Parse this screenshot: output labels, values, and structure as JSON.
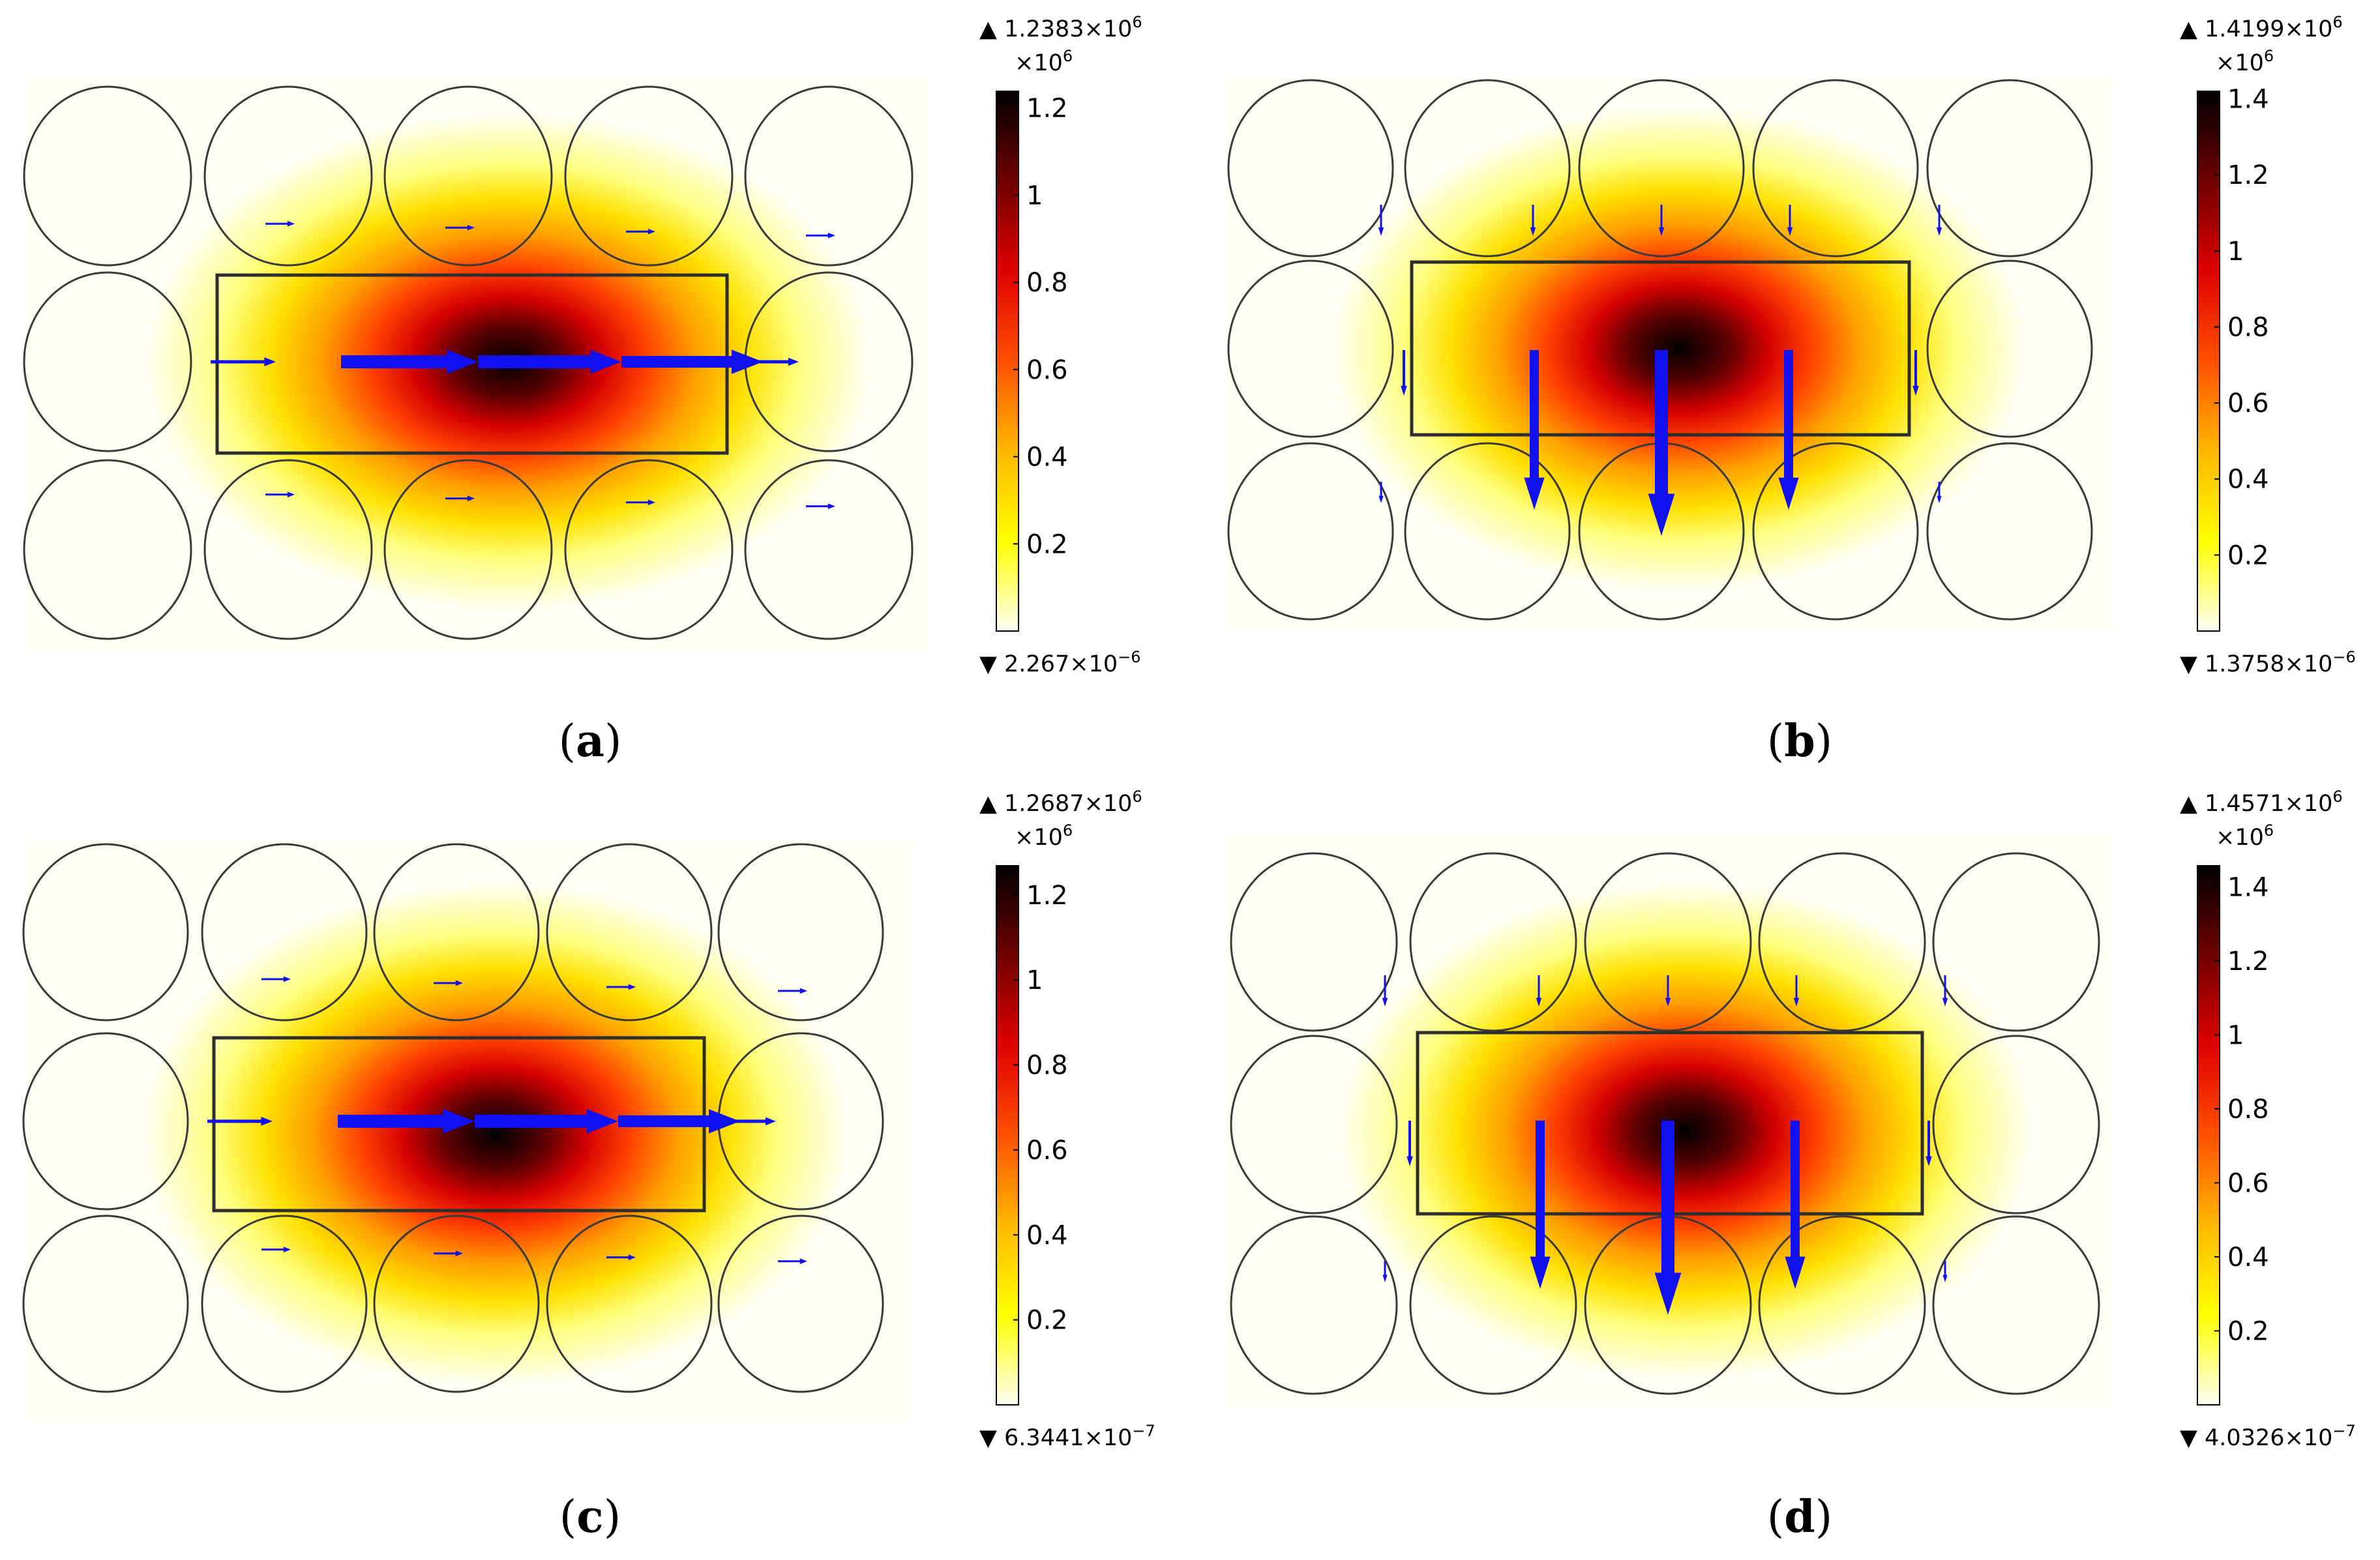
{
  "chart_data": [
    {
      "type": "heatmap",
      "panel": "a",
      "caption": {
        "open": "(",
        "letter": "a",
        "close": ")"
      },
      "colorbar": {
        "max_label": {
          "mantissa": "1.2383",
          "times": "×10",
          "exp": "6"
        },
        "min_label": {
          "mantissa": "2.267",
          "times": "×10",
          "exp": "−6"
        },
        "multiplier": {
          "times": "×10",
          "exp": "6"
        },
        "ticks": [
          {
            "value": 0.2,
            "label": "0.2"
          },
          {
            "value": 0.4,
            "label": "0.4"
          },
          {
            "value": 0.6,
            "label": "0.6"
          },
          {
            "value": 0.8,
            "label": "0.8"
          },
          {
            "value": 1.0,
            "label": "1"
          },
          {
            "value": 1.2,
            "label": "1.2"
          }
        ],
        "range": [
          0,
          1.2383
        ]
      },
      "arrow_direction": "horizontal",
      "circles_per_row": 5,
      "rows": 3
    },
    {
      "type": "heatmap",
      "panel": "b",
      "caption": {
        "open": "(",
        "letter": "b",
        "close": ")"
      },
      "colorbar": {
        "max_label": {
          "mantissa": "1.4199",
          "times": "×10",
          "exp": "6"
        },
        "min_label": {
          "mantissa": "1.3758",
          "times": "×10",
          "exp": "−6"
        },
        "multiplier": {
          "times": "×10",
          "exp": "6"
        },
        "ticks": [
          {
            "value": 0.2,
            "label": "0.2"
          },
          {
            "value": 0.4,
            "label": "0.4"
          },
          {
            "value": 0.6,
            "label": "0.6"
          },
          {
            "value": 0.8,
            "label": "0.8"
          },
          {
            "value": 1.0,
            "label": "1"
          },
          {
            "value": 1.2,
            "label": "1.2"
          },
          {
            "value": 1.4,
            "label": "1.4"
          }
        ],
        "range": [
          0,
          1.4199
        ]
      },
      "arrow_direction": "vertical",
      "circles_per_row": 5,
      "rows": 3
    },
    {
      "type": "heatmap",
      "panel": "c",
      "caption": {
        "open": "(",
        "letter": "c",
        "close": ")"
      },
      "colorbar": {
        "max_label": {
          "mantissa": "1.2687",
          "times": "×10",
          "exp": "6"
        },
        "min_label": {
          "mantissa": "6.3441",
          "times": "×10",
          "exp": "−7"
        },
        "multiplier": {
          "times": "×10",
          "exp": "6"
        },
        "ticks": [
          {
            "value": 0.2,
            "label": "0.2"
          },
          {
            "value": 0.4,
            "label": "0.4"
          },
          {
            "value": 0.6,
            "label": "0.6"
          },
          {
            "value": 0.8,
            "label": "0.8"
          },
          {
            "value": 1.0,
            "label": "1"
          },
          {
            "value": 1.2,
            "label": "1.2"
          }
        ],
        "range": [
          0,
          1.2687
        ]
      },
      "arrow_direction": "horizontal",
      "circles_per_row": 5,
      "rows": 3
    },
    {
      "type": "heatmap",
      "panel": "d",
      "caption": {
        "open": "(",
        "letter": "d",
        "close": ")"
      },
      "colorbar": {
        "max_label": {
          "mantissa": "1.4571",
          "times": "×10",
          "exp": "6"
        },
        "min_label": {
          "mantissa": "4.0326",
          "times": "×10",
          "exp": "−7"
        },
        "multiplier": {
          "times": "×10",
          "exp": "6"
        },
        "ticks": [
          {
            "value": 0.2,
            "label": "0.2"
          },
          {
            "value": 0.4,
            "label": "0.4"
          },
          {
            "value": 0.6,
            "label": "0.6"
          },
          {
            "value": 0.8,
            "label": "0.8"
          },
          {
            "value": 1.0,
            "label": "1"
          },
          {
            "value": 1.2,
            "label": "1.2"
          },
          {
            "value": 1.4,
            "label": "1.4"
          }
        ],
        "range": [
          0,
          1.4571
        ]
      },
      "arrow_direction": "vertical",
      "circles_per_row": 5,
      "rows": 3
    }
  ],
  "colors": {
    "background": "#ffffff",
    "circle_stroke": "#3a3a3a",
    "rect_stroke": "#2e2e2e",
    "arrow": "#1010f0",
    "cmap": [
      "#fffff4",
      "#ffff00",
      "#ffb800",
      "#ff5000",
      "#e00000",
      "#700000",
      "#000000"
    ]
  }
}
